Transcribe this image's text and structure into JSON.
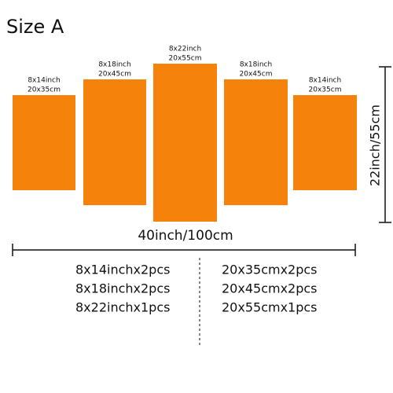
{
  "title": "Size A",
  "panels": [
    {
      "size_inch": "8x14inch",
      "size_cm": "20x35cm"
    },
    {
      "size_inch": "8x18inch",
      "size_cm": "20x45cm"
    },
    {
      "size_inch": "8x22inch",
      "size_cm": "20x55cm"
    },
    {
      "size_inch": "8x18inch",
      "size_cm": "20x45cm"
    },
    {
      "size_inch": "8x14inch",
      "size_cm": "20x35cm"
    }
  ],
  "width_label": "40inch/100cm",
  "height_label": "22inch/55cm",
  "left_list": [
    "8x14inchx2pcs",
    "8x18inchx2pcs",
    "8x22inchx1pcs"
  ],
  "right_list": [
    "20x35cmx2pcs",
    "20x45cmx2pcs",
    "20x55cmx1pcs"
  ]
}
